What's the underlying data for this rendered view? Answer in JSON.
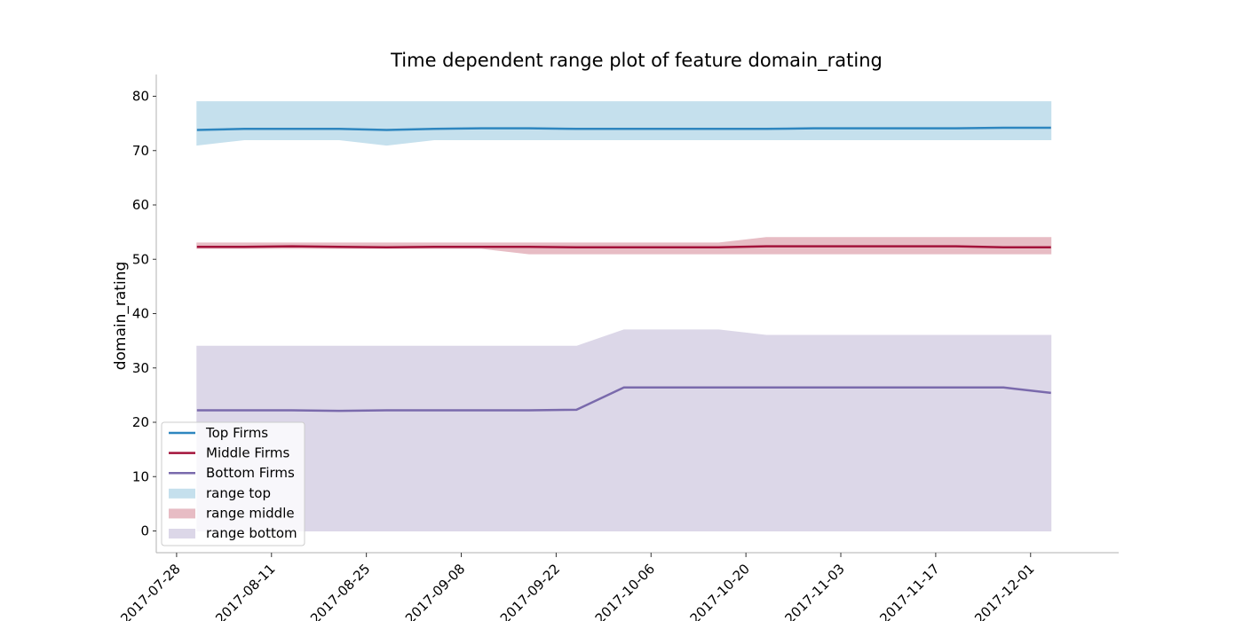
{
  "chart_data": {
    "type": "area",
    "title": "Time dependent range plot of feature domain_rating",
    "xlabel": "",
    "ylabel": "domain_rating",
    "ylim": [
      -4,
      84
    ],
    "xlim": [
      "2017-07-25",
      "2017-12-14"
    ],
    "y_ticks": [
      0,
      10,
      20,
      30,
      40,
      50,
      60,
      70,
      80
    ],
    "x_ticks": [
      "2017-07-28",
      "2017-08-11",
      "2017-08-25",
      "2017-09-08",
      "2017-09-22",
      "2017-10-06",
      "2017-10-20",
      "2017-11-03",
      "2017-11-17",
      "2017-12-01"
    ],
    "x": [
      "2017-07-31",
      "2017-08-07",
      "2017-08-14",
      "2017-08-21",
      "2017-08-28",
      "2017-09-04",
      "2017-09-11",
      "2017-09-18",
      "2017-09-25",
      "2017-10-02",
      "2017-10-09",
      "2017-10-16",
      "2017-10-23",
      "2017-10-30",
      "2017-11-06",
      "2017-11-13",
      "2017-11-20",
      "2017-11-27",
      "2017-12-04"
    ],
    "series": [
      {
        "name": "Top Firms",
        "color": "#2e86bf",
        "values": [
          73.8,
          74.0,
          74.0,
          74.0,
          73.8,
          74.0,
          74.1,
          74.1,
          74.0,
          74.0,
          74.0,
          74.0,
          74.0,
          74.1,
          74.1,
          74.1,
          74.1,
          74.2,
          74.2
        ]
      },
      {
        "name": "Middle Firms",
        "color": "#a3123a",
        "values": [
          52.3,
          52.3,
          52.4,
          52.3,
          52.2,
          52.3,
          52.3,
          52.3,
          52.2,
          52.2,
          52.2,
          52.2,
          52.4,
          52.4,
          52.4,
          52.4,
          52.4,
          52.2,
          52.2
        ]
      },
      {
        "name": "Bottom Firms",
        "color": "#7a6aac",
        "values": [
          22.2,
          22.2,
          22.2,
          22.1,
          22.2,
          22.2,
          22.2,
          22.2,
          22.3,
          26.4,
          26.4,
          26.4,
          26.4,
          26.4,
          26.4,
          26.4,
          26.4,
          26.4,
          25.4
        ]
      }
    ],
    "ranges": [
      {
        "name": "range top",
        "color": "#c5e0ed",
        "min": [
          71,
          72,
          72,
          72,
          71,
          72,
          72,
          72,
          72,
          72,
          72,
          72,
          72,
          72,
          72,
          72,
          72,
          72,
          72
        ],
        "max": [
          79,
          79,
          79,
          79,
          79,
          79,
          79,
          79,
          79,
          79,
          79,
          79,
          79,
          79,
          79,
          79,
          79,
          79,
          79
        ]
      },
      {
        "name": "range middle",
        "color": "#e7bcc4",
        "min": [
          52,
          52,
          52,
          52,
          52,
          52,
          52,
          51,
          51,
          51,
          51,
          51,
          51,
          51,
          51,
          51,
          51,
          51,
          51
        ],
        "max": [
          53,
          53,
          53,
          53,
          53,
          53,
          53,
          53,
          53,
          53,
          53,
          53,
          54,
          54,
          54,
          54,
          54,
          54,
          54
        ]
      },
      {
        "name": "range bottom",
        "color": "#dcd7e8",
        "min": [
          0,
          0,
          0,
          0,
          0,
          0,
          0,
          0,
          0,
          0,
          0,
          0,
          0,
          0,
          0,
          0,
          0,
          0,
          0
        ],
        "max": [
          34,
          34,
          34,
          34,
          34,
          34,
          34,
          34,
          34,
          37,
          37,
          37,
          36,
          36,
          36,
          36,
          36,
          36,
          36
        ]
      }
    ],
    "grid": false,
    "legend_position": "lower-left"
  }
}
